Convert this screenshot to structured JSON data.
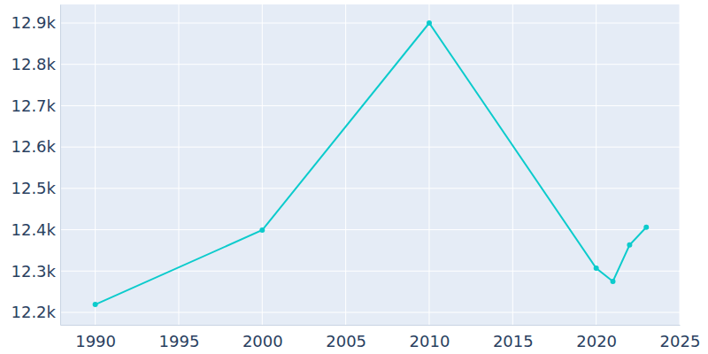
{
  "chart_data": {
    "type": "line",
    "x": [
      1990,
      2000,
      2010,
      2020,
      2021,
      2022,
      2023
    ],
    "values": [
      12219,
      12399,
      12900,
      12307,
      12275,
      12363,
      12406
    ],
    "color": "#0ccbcc",
    "marker": "circle",
    "xlim": [
      1987.9,
      2025
    ],
    "xticks": [
      1990,
      1995,
      2000,
      2005,
      2010,
      2015,
      2020,
      2025
    ],
    "ylim": [
      12170,
      12945
    ],
    "yticks": [
      {
        "value": 12200,
        "label": "12.2k"
      },
      {
        "value": 12300,
        "label": "12.3k"
      },
      {
        "value": 12400,
        "label": "12.4k"
      },
      {
        "value": 12500,
        "label": "12.5k"
      },
      {
        "value": 12600,
        "label": "12.6k"
      },
      {
        "value": 12700,
        "label": "12.7k"
      },
      {
        "value": 12800,
        "label": "12.8k"
      },
      {
        "value": 12900,
        "label": "12.9k"
      }
    ],
    "grid": true
  }
}
